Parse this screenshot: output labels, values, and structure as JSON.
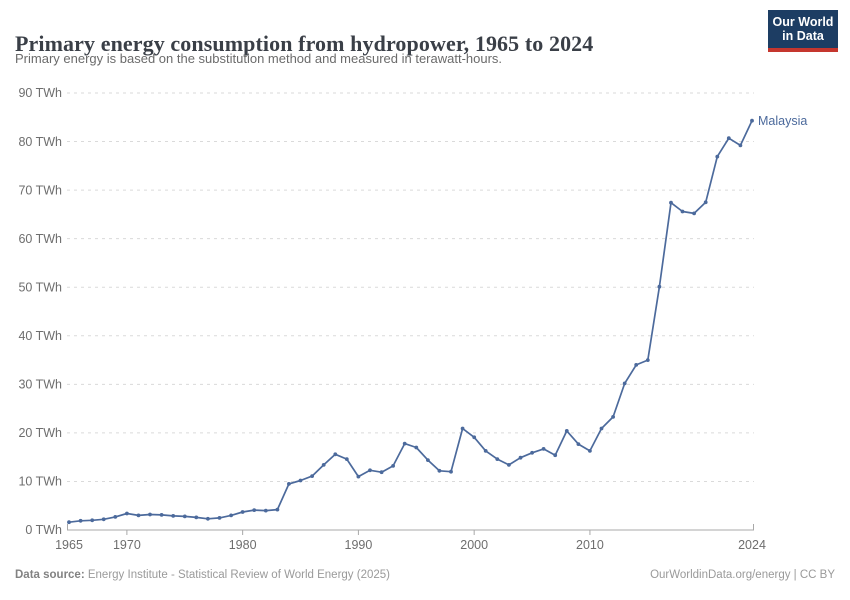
{
  "header": {
    "title": "Primary energy consumption from hydropower, 1965 to 2024",
    "subtitle": "Primary energy is based on the substitution method and measured in terawatt-hours."
  },
  "logo": {
    "line1": "Our World",
    "line2": "in Data",
    "bg_color": "#1d3d63",
    "accent_color": "#c5362e"
  },
  "footer": {
    "source_label": "Data source:",
    "source_text": " Energy Institute - Statistical Review of World Energy (2025)",
    "credit": "OurWorldinData.org/energy | CC BY"
  },
  "chart_data": {
    "type": "line",
    "title": "Primary energy consumption from hydropower, 1965 to 2024",
    "subtitle": "Primary energy is based on the substitution method and measured in terawatt-hours.",
    "unit": "TWh",
    "grid": true,
    "legend_position": "end-of-line",
    "ylim": [
      0,
      90
    ],
    "yticks": [
      0,
      10,
      20,
      30,
      40,
      50,
      60,
      70,
      80,
      90
    ],
    "ytick_suffix": " TWh",
    "xticks": [
      1965,
      1970,
      1980,
      1990,
      2000,
      2010,
      2024
    ],
    "x": [
      1965,
      1966,
      1967,
      1968,
      1969,
      1970,
      1971,
      1972,
      1973,
      1974,
      1975,
      1976,
      1977,
      1978,
      1979,
      1980,
      1981,
      1982,
      1983,
      1984,
      1985,
      1986,
      1987,
      1988,
      1989,
      1990,
      1991,
      1992,
      1993,
      1994,
      1995,
      1996,
      1997,
      1998,
      1999,
      2000,
      2001,
      2002,
      2003,
      2004,
      2005,
      2006,
      2007,
      2008,
      2009,
      2010,
      2011,
      2012,
      2013,
      2014,
      2015,
      2016,
      2017,
      2018,
      2019,
      2020,
      2021,
      2022,
      2023,
      2024
    ],
    "series": [
      {
        "name": "Malaysia",
        "color": "#4c6a9c",
        "values": [
          1.6,
          1.9,
          2.0,
          2.2,
          2.7,
          3.4,
          3.0,
          3.2,
          3.1,
          2.9,
          2.8,
          2.6,
          2.3,
          2.5,
          3.0,
          3.7,
          4.1,
          4.0,
          4.2,
          9.5,
          10.2,
          11.1,
          13.4,
          15.6,
          14.6,
          11.0,
          12.3,
          11.9,
          13.2,
          17.8,
          17.0,
          14.4,
          12.2,
          12.0,
          20.9,
          19.1,
          16.3,
          14.6,
          13.4,
          14.9,
          15.9,
          16.7,
          15.4,
          20.4,
          17.7,
          16.3,
          20.9,
          23.3,
          30.2,
          34.0,
          35.0,
          50.1,
          67.4,
          65.6,
          65.2,
          67.5,
          76.9,
          80.7,
          79.2,
          84.3
        ]
      }
    ]
  }
}
